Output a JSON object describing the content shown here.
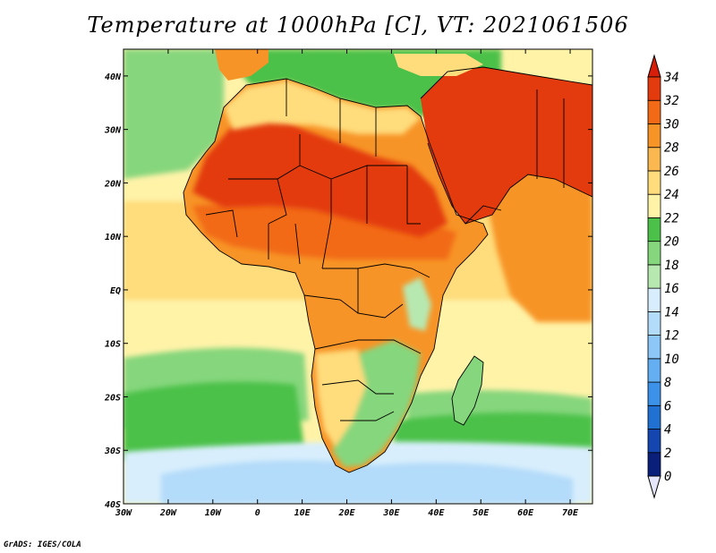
{
  "title": "Temperature at 1000hPa [C], VT: 2021061506",
  "credit": "GrADS: IGES/COLA",
  "map": {
    "projection": "latlon",
    "lon_range": [
      -30,
      75
    ],
    "lat_range": [
      -40,
      45
    ],
    "lon_ticks": [
      {
        "value": -30,
        "label": "30W"
      },
      {
        "value": -20,
        "label": "20W"
      },
      {
        "value": -10,
        "label": "10W"
      },
      {
        "value": 0,
        "label": "0"
      },
      {
        "value": 10,
        "label": "10E"
      },
      {
        "value": 20,
        "label": "20E"
      },
      {
        "value": 30,
        "label": "30E"
      },
      {
        "value": 40,
        "label": "40E"
      },
      {
        "value": 50,
        "label": "50E"
      },
      {
        "value": 60,
        "label": "60E"
      },
      {
        "value": 70,
        "label": "70E"
      }
    ],
    "lat_ticks": [
      {
        "value": 40,
        "label": "40N"
      },
      {
        "value": 30,
        "label": "30N"
      },
      {
        "value": 20,
        "label": "20N"
      },
      {
        "value": 10,
        "label": "10N"
      },
      {
        "value": 0,
        "label": "EQ"
      },
      {
        "value": -10,
        "label": "10S"
      },
      {
        "value": -20,
        "label": "20S"
      },
      {
        "value": -30,
        "label": "30S"
      },
      {
        "value": -40,
        "label": "40S"
      }
    ]
  },
  "colorbar": {
    "levels": [
      0,
      2,
      4,
      6,
      8,
      10,
      12,
      14,
      16,
      18,
      20,
      22,
      24,
      26,
      28,
      30,
      32,
      34
    ],
    "under_color": "#e6e6fa",
    "colors": [
      "#0a1f7a",
      "#1546b0",
      "#2171d3",
      "#3c91e8",
      "#64aef2",
      "#8cc7f7",
      "#b3dbfa",
      "#d8eefc",
      "#b7e8b0",
      "#86d67d",
      "#4cc14a",
      "#fff3a8",
      "#ffdc7c",
      "#fbb851",
      "#f79427",
      "#f26a16",
      "#e33a0e"
    ],
    "over_color": "#d61e0b"
  },
  "field_colors": {
    "ocean_south_cold": "#b3dbfa",
    "ocean_south_cool": "#d8eefc",
    "ocean_south_band": "#4cc14a",
    "ocean_subtropic": "#86d67d",
    "ocean_tropical": "#fff3a8",
    "ocean_warm": "#ffdc7c",
    "arabian_sea": "#f79427",
    "sahara_hot": "#e33a0e",
    "sahel": "#f26a16",
    "central_africa": "#f79427",
    "mediterranean": "#4cc14a",
    "southern_africa": "#86d67d",
    "highlands": "#b7e8b0"
  }
}
